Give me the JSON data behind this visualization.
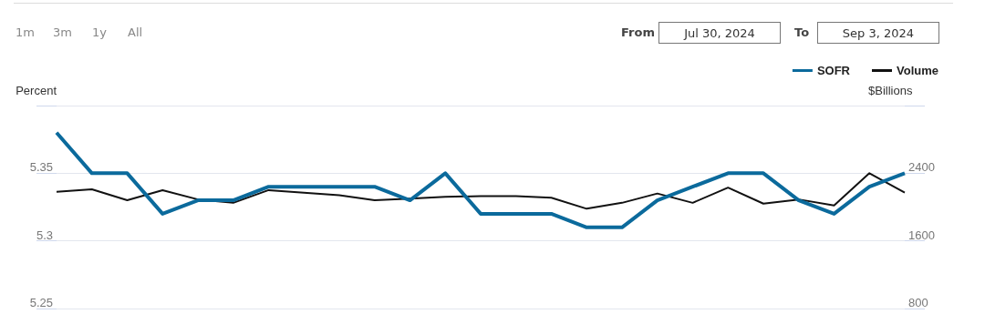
{
  "chart_data": {
    "type": "line",
    "ylabel": "Percent",
    "y2label": "$Billions",
    "categories": [
      null,
      null,
      null,
      null,
      null,
      null,
      null,
      null,
      null,
      null,
      null,
      null,
      null,
      null,
      null,
      null,
      null,
      null,
      null,
      null,
      null,
      null,
      null,
      null,
      null
    ],
    "series": [
      {
        "name": "SOFR",
        "color": "#0b6a9c",
        "values": [
          5.38,
          5.35,
          5.35,
          5.32,
          5.33,
          5.33,
          5.34,
          5.34,
          5.34,
          5.34,
          5.33,
          5.35,
          5.32,
          5.32,
          5.32,
          5.31,
          5.31,
          5.33,
          5.34,
          5.35,
          5.35,
          5.33,
          5.32,
          5.34,
          5.35
        ]
      },
      {
        "name": "Volume",
        "color": "#111111",
        "axis": "y2",
        "values": [
          2180,
          2210,
          2080,
          2200,
          2090,
          2050,
          2200,
          2170,
          2140,
          2080,
          2100,
          2120,
          2130,
          2130,
          2110,
          1980,
          2050,
          2160,
          2050,
          2230,
          2040,
          2090,
          2020,
          2400,
          2170
        ]
      }
    ],
    "ylim": [
      5.25,
      5.4
    ],
    "yticks": [
      5.25,
      5.3,
      5.35,
      {
        "value": 5.4,
        "label": null
      }
    ],
    "y2lim": [
      800,
      3200
    ],
    "y2ticks": [
      800,
      1600,
      2400,
      {
        "value": 3200,
        "label": null
      }
    ],
    "grid": "y",
    "legend": "top right",
    "marker": "none",
    "line_style": "solid",
    "annotations": [
      "1m",
      "3m",
      "1y",
      "All",
      "From",
      "Jul 30, 2024",
      "To",
      "Sep 3, 2024"
    ]
  }
}
